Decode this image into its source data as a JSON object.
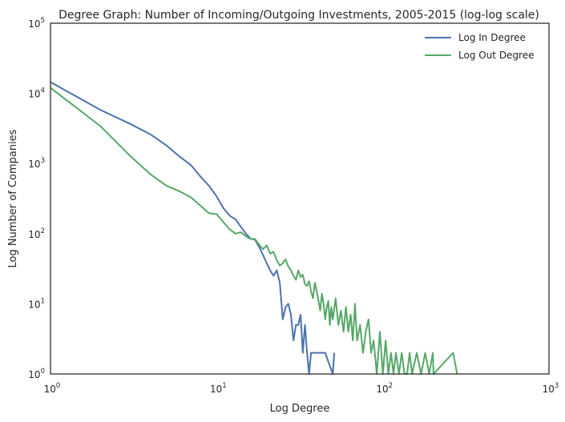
{
  "chart_data": {
    "type": "line",
    "title": "Degree Graph: Number of Incoming/Outgoing Investments, 2005-2015 (log-log scale)",
    "xlabel": "Log Degree",
    "ylabel": "Log Number of Companies",
    "xscale": "log",
    "yscale": "log",
    "xlim": [
      1,
      1000
    ],
    "ylim": [
      1,
      100000
    ],
    "x_ticks": [
      {
        "base": "10",
        "exp": "0",
        "value": 1
      },
      {
        "base": "10",
        "exp": "1",
        "value": 10
      },
      {
        "base": "10",
        "exp": "2",
        "value": 100
      },
      {
        "base": "10",
        "exp": "3",
        "value": 1000
      }
    ],
    "y_ticks": [
      {
        "base": "10",
        "exp": "0",
        "value": 1
      },
      {
        "base": "10",
        "exp": "1",
        "value": 10
      },
      {
        "base": "10",
        "exp": "2",
        "value": 100
      },
      {
        "base": "10",
        "exp": "3",
        "value": 1000
      },
      {
        "base": "10",
        "exp": "4",
        "value": 10000
      },
      {
        "base": "10",
        "exp": "5",
        "value": 100000
      }
    ],
    "grid": false,
    "legend_position": "top-right",
    "series": [
      {
        "name": "Log In Degree",
        "color": "#4c72b0",
        "points": [
          [
            1,
            14500
          ],
          [
            2,
            5800
          ],
          [
            3,
            3700
          ],
          [
            4,
            2600
          ],
          [
            5,
            1800
          ],
          [
            6,
            1250
          ],
          [
            7,
            950
          ],
          [
            8,
            650
          ],
          [
            9,
            480
          ],
          [
            10,
            340
          ],
          [
            11,
            230
          ],
          [
            12,
            180
          ],
          [
            13,
            160
          ],
          [
            14,
            125
          ],
          [
            15,
            100
          ],
          [
            16,
            85
          ],
          [
            17,
            82
          ],
          [
            18,
            65
          ],
          [
            19,
            50
          ],
          [
            20,
            38
          ],
          [
            21,
            30
          ],
          [
            22,
            25
          ],
          [
            23,
            30
          ],
          [
            24,
            20
          ],
          [
            25,
            6
          ],
          [
            26,
            9
          ],
          [
            27,
            10
          ],
          [
            28,
            7
          ],
          [
            29,
            3
          ],
          [
            30,
            5
          ],
          [
            31,
            5
          ],
          [
            32,
            7
          ],
          [
            33,
            2
          ],
          [
            34,
            5
          ],
          [
            35,
            2
          ],
          [
            36,
            1
          ],
          [
            37,
            2
          ],
          [
            45,
            2
          ],
          [
            47,
            1.5
          ],
          [
            50,
            1
          ],
          [
            51,
            2
          ]
        ]
      },
      {
        "name": "Log Out Degree",
        "color": "#55a868",
        "points": [
          [
            1,
            12000
          ],
          [
            2,
            3400
          ],
          [
            3,
            1300
          ],
          [
            4,
            700
          ],
          [
            5,
            480
          ],
          [
            6,
            400
          ],
          [
            7,
            330
          ],
          [
            8,
            250
          ],
          [
            9,
            195
          ],
          [
            10,
            190
          ],
          [
            11,
            145
          ],
          [
            12,
            115
          ],
          [
            13,
            100
          ],
          [
            14,
            105
          ],
          [
            15,
            92
          ],
          [
            16,
            84
          ],
          [
            17,
            84
          ],
          [
            18,
            70
          ],
          [
            19,
            60
          ],
          [
            20,
            68
          ],
          [
            21,
            52
          ],
          [
            22,
            55
          ],
          [
            23,
            42
          ],
          [
            24,
            35
          ],
          [
            25,
            38
          ],
          [
            26,
            43
          ],
          [
            27,
            34
          ],
          [
            28,
            30
          ],
          [
            29,
            25
          ],
          [
            30,
            22
          ],
          [
            31,
            30
          ],
          [
            32,
            24
          ],
          [
            33,
            26
          ],
          [
            34,
            19
          ],
          [
            35,
            18
          ],
          [
            36,
            21
          ],
          [
            37,
            15
          ],
          [
            38,
            12
          ],
          [
            39,
            20
          ],
          [
            40,
            15
          ],
          [
            41,
            11
          ],
          [
            42,
            8
          ],
          [
            43,
            14
          ],
          [
            44,
            10
          ],
          [
            45,
            6
          ],
          [
            46,
            9
          ],
          [
            47,
            11
          ],
          [
            48,
            5
          ],
          [
            49,
            9
          ],
          [
            50,
            6
          ],
          [
            52,
            12
          ],
          [
            54,
            5
          ],
          [
            56,
            8
          ],
          [
            58,
            4
          ],
          [
            60,
            9
          ],
          [
            62,
            4
          ],
          [
            64,
            7
          ],
          [
            66,
            3
          ],
          [
            68,
            10
          ],
          [
            70,
            3
          ],
          [
            73,
            5
          ],
          [
            76,
            2
          ],
          [
            79,
            4
          ],
          [
            82,
            6
          ],
          [
            85,
            2
          ],
          [
            88,
            3
          ],
          [
            92,
            1
          ],
          [
            96,
            4
          ],
          [
            100,
            1
          ],
          [
            104,
            3
          ],
          [
            108,
            1
          ],
          [
            112,
            2
          ],
          [
            116,
            1
          ],
          [
            120,
            2
          ],
          [
            125,
            1
          ],
          [
            130,
            2
          ],
          [
            135,
            1
          ],
          [
            140,
            1
          ],
          [
            145,
            2
          ],
          [
            150,
            1
          ],
          [
            160,
            2
          ],
          [
            170,
            1
          ],
          [
            180,
            2
          ],
          [
            190,
            1
          ],
          [
            200,
            2
          ],
          [
            202,
            1
          ],
          [
            265,
            2
          ],
          [
            280,
            1
          ]
        ]
      }
    ]
  }
}
